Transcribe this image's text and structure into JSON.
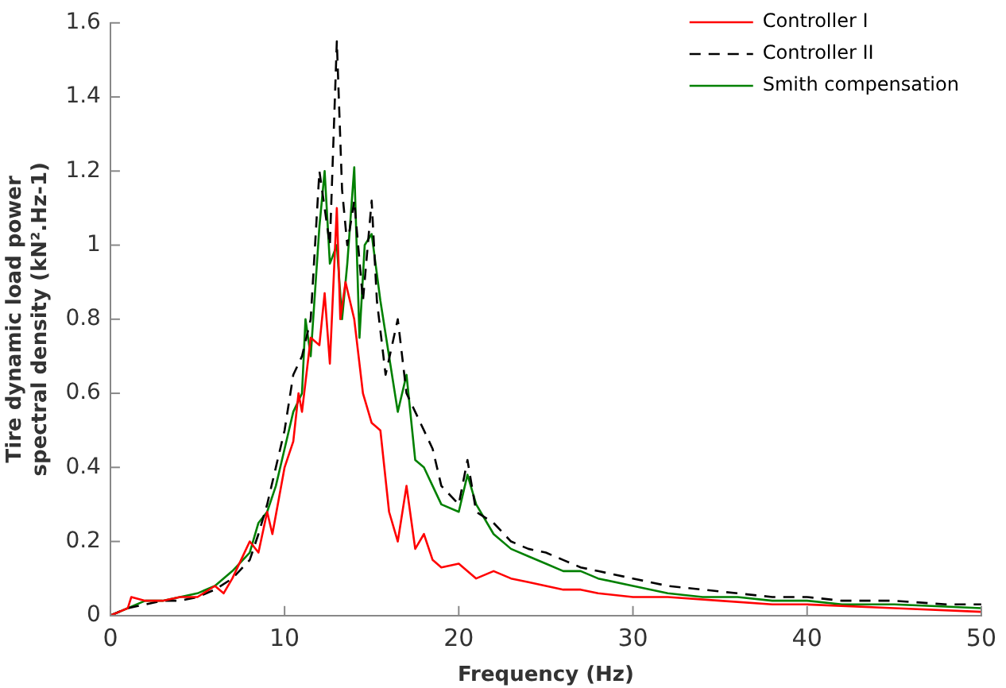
{
  "chart_data": {
    "type": "line",
    "xlabel": "Frequency (Hz)",
    "ylabel": "Tire dynamic load power spectral density (kN².Hz-1)",
    "xlim": [
      0,
      50
    ],
    "xticks": [
      0,
      10,
      20,
      30,
      40,
      50
    ],
    "ylim": [
      0,
      1.6
    ],
    "yticks": [
      0,
      0.2,
      0.4,
      0.6,
      0.8,
      1,
      1.2,
      1.4,
      1.6
    ],
    "grid": false,
    "legend": "top right",
    "marker": "none",
    "series": [
      {
        "name": "Controller I",
        "color": "#ff0000",
        "line_style": "solid",
        "x": [
          0,
          0.5,
          1,
          1.2,
          2,
          3,
          4,
          5,
          6,
          6.5,
          7,
          7.5,
          8,
          8.5,
          9,
          9.3,
          10,
          10.5,
          10.8,
          11,
          11.5,
          12,
          12.3,
          12.6,
          13,
          13.2,
          13.5,
          14,
          14.5,
          15,
          15.5,
          16,
          16.5,
          17,
          17.5,
          18,
          18.5,
          19,
          20,
          21,
          22,
          23,
          24,
          25,
          26,
          27,
          28,
          30,
          32,
          35,
          38,
          40,
          45,
          50
        ],
        "values": [
          0,
          0.01,
          0.02,
          0.05,
          0.04,
          0.04,
          0.05,
          0.05,
          0.08,
          0.06,
          0.1,
          0.15,
          0.2,
          0.17,
          0.28,
          0.22,
          0.4,
          0.47,
          0.6,
          0.55,
          0.75,
          0.73,
          0.87,
          0.68,
          1.1,
          0.8,
          0.9,
          0.8,
          0.6,
          0.52,
          0.5,
          0.28,
          0.2,
          0.35,
          0.18,
          0.22,
          0.15,
          0.13,
          0.14,
          0.1,
          0.12,
          0.1,
          0.09,
          0.08,
          0.07,
          0.07,
          0.06,
          0.05,
          0.05,
          0.04,
          0.03,
          0.03,
          0.02,
          0.01
        ]
      },
      {
        "name": "Controller II",
        "color": "#000000",
        "line_style": "dashed",
        "x": [
          0,
          1,
          2,
          3,
          4,
          5,
          6,
          7,
          8,
          8.5,
          9,
          9.5,
          10,
          10.5,
          11,
          11.5,
          12,
          12.3,
          12.6,
          13,
          13.3,
          13.6,
          14,
          14.5,
          15,
          15.3,
          15.8,
          16.5,
          17,
          17.5,
          18,
          18.5,
          19,
          20,
          20.5,
          21,
          22,
          23,
          24,
          25,
          26,
          27,
          28,
          30,
          32,
          34,
          36,
          38,
          40,
          42,
          45,
          48,
          50
        ],
        "values": [
          0,
          0.02,
          0.03,
          0.04,
          0.04,
          0.05,
          0.07,
          0.1,
          0.15,
          0.22,
          0.3,
          0.4,
          0.5,
          0.65,
          0.7,
          0.8,
          1.2,
          1.1,
          1,
          1.55,
          1.15,
          1,
          1.12,
          0.85,
          1.12,
          0.85,
          0.65,
          0.8,
          0.6,
          0.55,
          0.5,
          0.45,
          0.35,
          0.3,
          0.42,
          0.28,
          0.25,
          0.2,
          0.18,
          0.17,
          0.15,
          0.13,
          0.12,
          0.1,
          0.08,
          0.07,
          0.06,
          0.05,
          0.05,
          0.04,
          0.04,
          0.03,
          0.03
        ]
      },
      {
        "name": "Smith compensation",
        "color": "#008000",
        "line_style": "solid",
        "x": [
          0,
          1,
          2,
          3,
          4,
          5,
          6,
          7,
          8,
          8.5,
          9,
          9.5,
          10,
          10.5,
          11,
          11.2,
          11.5,
          12,
          12.3,
          12.6,
          13,
          13.3,
          13.6,
          14,
          14.3,
          14.6,
          15,
          15.5,
          16,
          16.5,
          17,
          17.5,
          18,
          18.5,
          19,
          20,
          20.5,
          21,
          22,
          23,
          24,
          25,
          26,
          27,
          28,
          30,
          32,
          34,
          36,
          38,
          40,
          42,
          45,
          50
        ],
        "values": [
          0,
          0.02,
          0.04,
          0.04,
          0.05,
          0.06,
          0.08,
          0.12,
          0.17,
          0.25,
          0.28,
          0.35,
          0.45,
          0.55,
          0.6,
          0.8,
          0.7,
          1.05,
          1.2,
          0.95,
          1,
          0.8,
          0.95,
          1.21,
          0.75,
          1,
          1.03,
          0.85,
          0.7,
          0.55,
          0.65,
          0.42,
          0.4,
          0.35,
          0.3,
          0.28,
          0.38,
          0.3,
          0.22,
          0.18,
          0.16,
          0.14,
          0.12,
          0.12,
          0.1,
          0.08,
          0.06,
          0.05,
          0.05,
          0.04,
          0.04,
          0.03,
          0.03,
          0.02
        ]
      }
    ]
  }
}
